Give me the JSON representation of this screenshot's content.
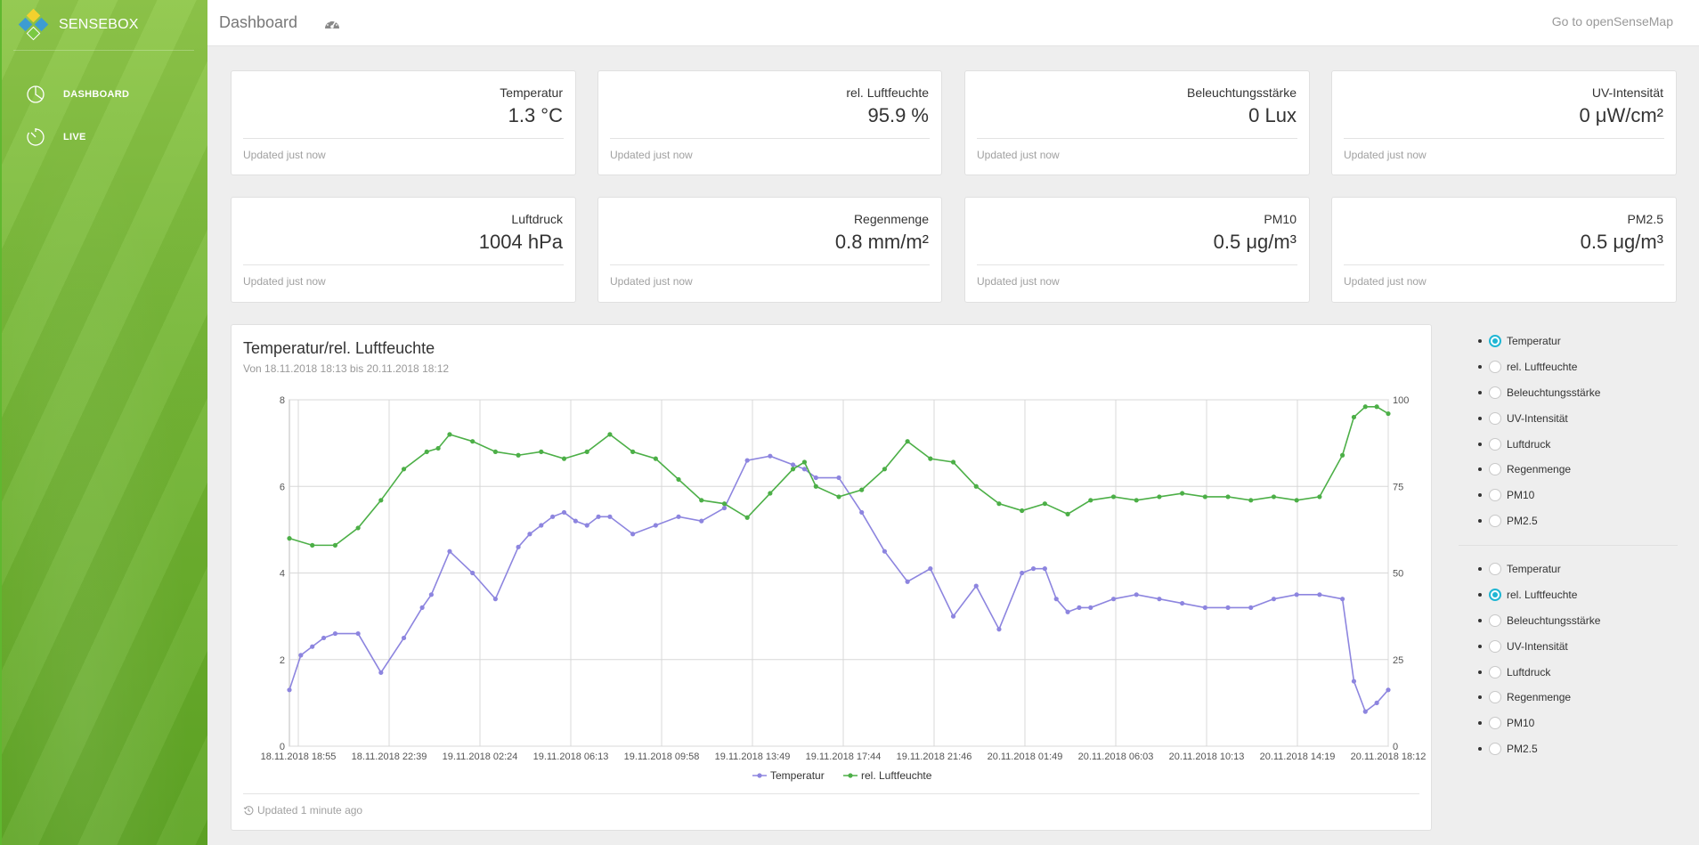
{
  "sidebar": {
    "brand": "SENSEBOX",
    "items": [
      {
        "label": "DASHBOARD",
        "icon": "pie-chart-icon"
      },
      {
        "label": "LIVE",
        "icon": "timer-icon"
      }
    ]
  },
  "topbar": {
    "title": "Dashboard",
    "icon": "speedometer-icon",
    "link": "Go to openSenseMap"
  },
  "stats": [
    {
      "name": "Temperatur",
      "value": "1.3 °C",
      "updated": "Updated just now"
    },
    {
      "name": "rel. Luftfeuchte",
      "value": "95.9 %",
      "updated": "Updated just now"
    },
    {
      "name": "Beleuchtungsstärke",
      "value": "0 Lux",
      "updated": "Updated just now"
    },
    {
      "name": "UV-Intensität",
      "value": "0 μW/cm²",
      "updated": "Updated just now"
    },
    {
      "name": "Luftdruck",
      "value": "1004 hPa",
      "updated": "Updated just now"
    },
    {
      "name": "Regenmenge",
      "value": "0.8 mm/m²",
      "updated": "Updated just now"
    },
    {
      "name": "PM10",
      "value": "0.5 μg/m³",
      "updated": "Updated just now"
    },
    {
      "name": "PM2.5",
      "value": "0.5 μg/m³",
      "updated": "Updated just now"
    }
  ],
  "chart_card": {
    "title": "Temperatur/rel. Luftfeuchte",
    "subtitle": "Von 18.11.2018 18:13 bis 20.11.2018 18:12",
    "updated": "Updated 1 minute ago"
  },
  "radio_groups": [
    {
      "selected": 0,
      "options": [
        "Temperatur",
        "rel. Luftfeuchte",
        "Beleuchtungsstärke",
        "UV-Intensität",
        "Luftdruck",
        "Regenmenge",
        "PM10",
        "PM2.5"
      ]
    },
    {
      "selected": 1,
      "options": [
        "Temperatur",
        "rel. Luftfeuchte",
        "Beleuchtungsstärke",
        "UV-Intensität",
        "Luftdruck",
        "Regenmenge",
        "PM10",
        "PM2.5"
      ]
    }
  ],
  "chart_data": {
    "type": "line",
    "title": "",
    "xlabel": "",
    "ylabel": "",
    "x_tick_labels": [
      "18.11.2018 18:55",
      "18.11.2018 22:39",
      "19.11.2018 02:24",
      "19.11.2018 06:13",
      "19.11.2018 09:58",
      "19.11.2018 13:49",
      "19.11.2018 17:44",
      "19.11.2018 21:46",
      "20.11.2018 01:49",
      "20.11.2018 06:03",
      "20.11.2018 10:13",
      "20.11.2018 14:19",
      "20.11.2018 18:12"
    ],
    "first_tick_label": "18.11.2018",
    "x_range": [
      0,
      48
    ],
    "y_left": {
      "range": [
        0,
        8
      ],
      "ticks": [
        0,
        2,
        4,
        6,
        8
      ]
    },
    "y_right": {
      "range": [
        0,
        100
      ],
      "ticks": [
        0,
        25,
        50,
        75,
        100
      ]
    },
    "grid": true,
    "legend_position": "bottom",
    "series": [
      {
        "name": "Temperatur",
        "axis": "left",
        "color": "#8d85df",
        "x": [
          0,
          0.5,
          1,
          1.5,
          2,
          3,
          4,
          5,
          5.8,
          6.2,
          7,
          8,
          9,
          10,
          10.5,
          11,
          11.5,
          12,
          12.5,
          13,
          13.5,
          14,
          15,
          16,
          17,
          18,
          19,
          20,
          21,
          22,
          22.5,
          23,
          24,
          25,
          26,
          27,
          28,
          29,
          30,
          31,
          32,
          32.5,
          33,
          33.5,
          34,
          34.5,
          35,
          36,
          37,
          38,
          39,
          40,
          41,
          42,
          43,
          44,
          45,
          46,
          46.5,
          47,
          47.5,
          48
        ],
        "y": [
          1.3,
          2.1,
          2.3,
          2.5,
          2.6,
          2.6,
          1.7,
          2.5,
          3.2,
          3.5,
          4.5,
          4.0,
          3.4,
          4.6,
          4.9,
          5.1,
          5.3,
          5.4,
          5.2,
          5.1,
          5.3,
          5.3,
          4.9,
          5.1,
          5.3,
          5.2,
          5.5,
          6.6,
          6.7,
          6.5,
          6.4,
          6.2,
          6.2,
          5.4,
          4.5,
          3.8,
          4.1,
          3.0,
          3.7,
          2.7,
          4.0,
          4.1,
          4.1,
          3.4,
          3.1,
          3.2,
          3.2,
          3.4,
          3.5,
          3.4,
          3.3,
          3.2,
          3.2,
          3.2,
          3.4,
          3.5,
          3.5,
          3.4,
          1.5,
          0.8,
          1.0,
          1.3
        ]
      },
      {
        "name": "rel. Luftfeuchte",
        "axis": "right",
        "color": "#4caf47",
        "x": [
          0,
          1,
          2,
          3,
          4,
          5,
          6,
          6.5,
          7,
          8,
          9,
          10,
          11,
          12,
          13,
          14,
          15,
          16,
          17,
          18,
          19,
          20,
          21,
          22,
          22.5,
          23,
          24,
          25,
          26,
          27,
          28,
          29,
          30,
          31,
          32,
          33,
          34,
          35,
          36,
          37,
          38,
          39,
          40,
          41,
          42,
          43,
          44,
          45,
          46,
          46.5,
          47,
          47.5,
          48
        ],
        "y": [
          60,
          58,
          58,
          63,
          71,
          80,
          85,
          86,
          90,
          88,
          85,
          84,
          85,
          83,
          85,
          90,
          85,
          83,
          77,
          71,
          70,
          66,
          73,
          80,
          82,
          75,
          72,
          74,
          80,
          88,
          83,
          82,
          75,
          70,
          68,
          70,
          67,
          71,
          72,
          71,
          72,
          73,
          72,
          72,
          71,
          72,
          71,
          72,
          84,
          95,
          98,
          98,
          96
        ]
      }
    ]
  }
}
